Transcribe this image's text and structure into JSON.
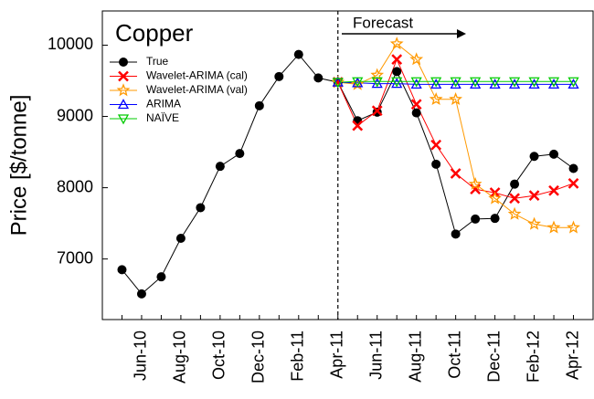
{
  "chart_data": {
    "type": "line",
    "title": "Copper",
    "y_label": "Price [$/tonne]",
    "annotation": "Forecast",
    "categories": [
      null,
      "Jun-10",
      null,
      "Aug-10",
      null,
      "Oct-10",
      null,
      "Dec-10",
      null,
      "Feb-11",
      null,
      "Apr-11",
      null,
      "Jun-11",
      null,
      "Aug-11",
      null,
      "Oct-11",
      null,
      "Dec-11",
      null,
      "Feb-12",
      null,
      "Apr-12"
    ],
    "series": [
      {
        "name": "True",
        "color": "#000000",
        "marker": "circle",
        "values": [
          6850,
          6510,
          6750,
          7290,
          7720,
          8300,
          8480,
          9150,
          9560,
          9870,
          9540,
          9480,
          8940,
          9060,
          9630,
          9050,
          8330,
          7350,
          7560,
          7570,
          8050,
          8440,
          8470,
          8270
        ]
      },
      {
        "name": "Wavelet-ARIMA (cal)",
        "color": "#ff0000",
        "marker": "x",
        "values": [
          null,
          null,
          null,
          null,
          null,
          null,
          null,
          null,
          null,
          null,
          null,
          9480,
          8870,
          9080,
          9800,
          9170,
          8600,
          8200,
          7980,
          7930,
          7850,
          7890,
          7960,
          8060
        ]
      },
      {
        "name": "Wavelet-ARIMA (val)",
        "color": "#ff9900",
        "marker": "star",
        "values": [
          null,
          null,
          null,
          null,
          null,
          null,
          null,
          null,
          null,
          null,
          null,
          9480,
          9450,
          9580,
          10020,
          9800,
          9240,
          9240,
          8050,
          7850,
          7630,
          7490,
          7440,
          7440
        ]
      },
      {
        "name": "ARIMA",
        "color": "#0000ff",
        "marker": "triangle",
        "values": [
          null,
          null,
          null,
          null,
          null,
          null,
          null,
          null,
          null,
          null,
          null,
          9480,
          9470,
          9460,
          9460,
          9450,
          9450,
          9450,
          9450,
          9450,
          9450,
          9450,
          9450,
          9450
        ]
      },
      {
        "name": "NAÏVE",
        "color": "#00cc00",
        "marker": "triangle-down",
        "values": [
          null,
          null,
          null,
          null,
          null,
          null,
          null,
          null,
          null,
          null,
          null,
          9480,
          9490,
          9490,
          9490,
          9490,
          9490,
          9490,
          9490,
          9490,
          9490,
          9490,
          9490,
          9490
        ]
      }
    ],
    "ylim": [
      6150,
      10480
    ],
    "yticks": [
      7000,
      8000,
      9000,
      10000
    ],
    "grid": false,
    "legend": "upper left"
  }
}
